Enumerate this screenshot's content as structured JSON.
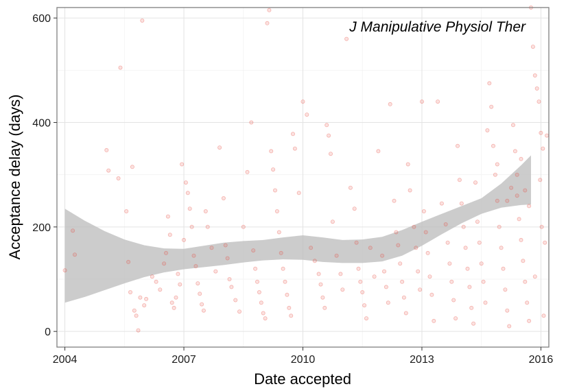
{
  "chart_data": {
    "type": "scatter",
    "title": "",
    "annotation": "J Manipulative Physiol Ther",
    "xlabel": "Date accepted",
    "ylabel": "Acceptance delay (days)",
    "x_unit": "year",
    "xlim": [
      2003.8,
      2016.2
    ],
    "ylim": [
      -30,
      620
    ],
    "x_ticks": [
      2004,
      2007,
      2010,
      2013,
      2016
    ],
    "x_tick_labels": [
      "2004",
      "2007",
      "2010",
      "2013",
      "2016"
    ],
    "y_ticks": [
      0,
      200,
      400,
      600
    ],
    "y_tick_labels": [
      "0",
      "200",
      "400",
      "600"
    ],
    "grid": true,
    "point_color": "#e84a3f",
    "band_color": "#bebebe",
    "series": [
      {
        "kind": "points",
        "points": [
          [
            2004.0,
            117
          ],
          [
            2004.2,
            193
          ],
          [
            2004.25,
            147
          ],
          [
            2005.05,
            347
          ],
          [
            2005.1,
            308
          ],
          [
            2005.35,
            293
          ],
          [
            2005.4,
            505
          ],
          [
            2005.55,
            230
          ],
          [
            2005.6,
            133
          ],
          [
            2005.65,
            75
          ],
          [
            2005.7,
            315
          ],
          [
            2005.75,
            40
          ],
          [
            2005.8,
            30
          ],
          [
            2005.85,
            2
          ],
          [
            2005.9,
            65
          ],
          [
            2005.95,
            595
          ],
          [
            2006.0,
            50
          ],
          [
            2006.05,
            62
          ],
          [
            2006.2,
            105
          ],
          [
            2006.3,
            95
          ],
          [
            2006.4,
            80
          ],
          [
            2006.5,
            130
          ],
          [
            2006.55,
            150
          ],
          [
            2006.6,
            220
          ],
          [
            2006.65,
            185
          ],
          [
            2006.7,
            55
          ],
          [
            2006.75,
            45
          ],
          [
            2006.8,
            65
          ],
          [
            2006.85,
            110
          ],
          [
            2006.9,
            90
          ],
          [
            2007.0,
            175
          ],
          [
            2006.95,
            320
          ],
          [
            2007.05,
            285
          ],
          [
            2007.1,
            265
          ],
          [
            2007.15,
            235
          ],
          [
            2007.2,
            200
          ],
          [
            2007.25,
            145
          ],
          [
            2007.3,
            125
          ],
          [
            2007.35,
            92
          ],
          [
            2007.4,
            72
          ],
          [
            2007.45,
            52
          ],
          [
            2007.5,
            40
          ],
          [
            2007.55,
            230
          ],
          [
            2007.6,
            200
          ],
          [
            2007.7,
            160
          ],
          [
            2007.8,
            115
          ],
          [
            2007.9,
            352
          ],
          [
            2008.0,
            255
          ],
          [
            2008.05,
            165
          ],
          [
            2008.1,
            140
          ],
          [
            2008.15,
            100
          ],
          [
            2008.2,
            85
          ],
          [
            2008.3,
            60
          ],
          [
            2008.4,
            38
          ],
          [
            2008.5,
            200
          ],
          [
            2008.6,
            305
          ],
          [
            2008.7,
            400
          ],
          [
            2008.75,
            155
          ],
          [
            2008.8,
            120
          ],
          [
            2008.85,
            95
          ],
          [
            2008.9,
            75
          ],
          [
            2008.95,
            55
          ],
          [
            2009.0,
            35
          ],
          [
            2009.05,
            25
          ],
          [
            2009.1,
            590
          ],
          [
            2009.15,
            615
          ],
          [
            2009.2,
            345
          ],
          [
            2009.25,
            310
          ],
          [
            2009.3,
            270
          ],
          [
            2009.35,
            230
          ],
          [
            2009.4,
            190
          ],
          [
            2009.45,
            150
          ],
          [
            2009.5,
            120
          ],
          [
            2009.55,
            95
          ],
          [
            2009.6,
            70
          ],
          [
            2009.65,
            45
          ],
          [
            2009.7,
            30
          ],
          [
            2009.75,
            378
          ],
          [
            2009.8,
            350
          ],
          [
            2009.9,
            265
          ],
          [
            2010.0,
            440
          ],
          [
            2010.1,
            415
          ],
          [
            2010.2,
            160
          ],
          [
            2010.3,
            135
          ],
          [
            2010.4,
            110
          ],
          [
            2010.45,
            90
          ],
          [
            2010.5,
            65
          ],
          [
            2010.55,
            45
          ],
          [
            2010.6,
            395
          ],
          [
            2010.65,
            375
          ],
          [
            2010.7,
            340
          ],
          [
            2010.75,
            210
          ],
          [
            2010.85,
            145
          ],
          [
            2010.95,
            110
          ],
          [
            2011.0,
            80
          ],
          [
            2011.1,
            560
          ],
          [
            2011.2,
            275
          ],
          [
            2011.3,
            235
          ],
          [
            2011.35,
            170
          ],
          [
            2011.4,
            120
          ],
          [
            2011.45,
            95
          ],
          [
            2011.5,
            75
          ],
          [
            2011.55,
            50
          ],
          [
            2011.6,
            25
          ],
          [
            2011.7,
            160
          ],
          [
            2011.8,
            105
          ],
          [
            2011.9,
            345
          ],
          [
            2012.0,
            145
          ],
          [
            2012.05,
            115
          ],
          [
            2012.1,
            85
          ],
          [
            2012.15,
            55
          ],
          [
            2012.2,
            435
          ],
          [
            2012.3,
            250
          ],
          [
            2012.35,
            190
          ],
          [
            2012.4,
            165
          ],
          [
            2012.45,
            130
          ],
          [
            2012.5,
            95
          ],
          [
            2012.55,
            65
          ],
          [
            2012.6,
            35
          ],
          [
            2012.65,
            320
          ],
          [
            2012.7,
            270
          ],
          [
            2012.8,
            200
          ],
          [
            2012.85,
            160
          ],
          [
            2012.9,
            115
          ],
          [
            2012.95,
            80
          ],
          [
            2013.0,
            440
          ],
          [
            2013.05,
            230
          ],
          [
            2013.1,
            190
          ],
          [
            2013.15,
            150
          ],
          [
            2013.2,
            105
          ],
          [
            2013.25,
            70
          ],
          [
            2013.3,
            20
          ],
          [
            2013.4,
            440
          ],
          [
            2013.5,
            245
          ],
          [
            2013.6,
            205
          ],
          [
            2013.65,
            170
          ],
          [
            2013.7,
            130
          ],
          [
            2013.75,
            95
          ],
          [
            2013.8,
            60
          ],
          [
            2013.85,
            25
          ],
          [
            2013.9,
            355
          ],
          [
            2013.95,
            290
          ],
          [
            2014.0,
            245
          ],
          [
            2014.05,
            200
          ],
          [
            2014.1,
            160
          ],
          [
            2014.15,
            120
          ],
          [
            2014.2,
            85
          ],
          [
            2014.25,
            45
          ],
          [
            2014.3,
            15
          ],
          [
            2014.35,
            285
          ],
          [
            2014.4,
            210
          ],
          [
            2014.45,
            170
          ],
          [
            2014.5,
            130
          ],
          [
            2014.55,
            95
          ],
          [
            2014.6,
            55
          ],
          [
            2014.65,
            385
          ],
          [
            2014.7,
            475
          ],
          [
            2014.75,
            430
          ],
          [
            2014.8,
            355
          ],
          [
            2014.85,
            300
          ],
          [
            2014.9,
            250
          ],
          [
            2014.95,
            200
          ],
          [
            2015.0,
            160
          ],
          [
            2015.05,
            120
          ],
          [
            2015.1,
            80
          ],
          [
            2015.15,
            40
          ],
          [
            2015.2,
            10
          ],
          [
            2015.3,
            395
          ],
          [
            2015.35,
            345
          ],
          [
            2015.4,
            260
          ],
          [
            2015.45,
            215
          ],
          [
            2015.5,
            175
          ],
          [
            2015.55,
            135
          ],
          [
            2015.6,
            95
          ],
          [
            2015.65,
            55
          ],
          [
            2015.7,
            20
          ],
          [
            2015.75,
            620
          ],
          [
            2015.8,
            545
          ],
          [
            2015.85,
            490
          ],
          [
            2015.9,
            465
          ],
          [
            2015.95,
            440
          ],
          [
            2016.0,
            380
          ],
          [
            2016.05,
            350
          ],
          [
            2015.4,
            300
          ],
          [
            2015.5,
            330
          ],
          [
            2015.6,
            270
          ],
          [
            2015.7,
            240
          ],
          [
            2015.25,
            275
          ],
          [
            2015.15,
            250
          ],
          [
            2014.9,
            320
          ],
          [
            2015.85,
            105
          ],
          [
            2016.1,
            170
          ],
          [
            2016.15,
            375
          ],
          [
            2015.98,
            290
          ],
          [
            2016.02,
            200
          ],
          [
            2016.07,
            30
          ]
        ]
      },
      {
        "kind": "smooth-ci-band",
        "x": [
          2004.0,
          2004.5,
          2005.0,
          2005.5,
          2006.0,
          2006.5,
          2007.0,
          2007.5,
          2008.0,
          2008.5,
          2009.0,
          2009.5,
          2010.0,
          2010.5,
          2011.0,
          2011.5,
          2012.0,
          2012.5,
          2013.0,
          2013.5,
          2014.0,
          2014.5,
          2015.0,
          2015.5,
          2015.75
        ],
        "lower": [
          55,
          66,
          79,
          92,
          104,
          113,
          119,
          123,
          127,
          132,
          136,
          138,
          137,
          133,
          131,
          131,
          134,
          145,
          164,
          186,
          207,
          225,
          237,
          242,
          243
        ],
        "upper": [
          235,
          212,
          192,
          176,
          165,
          159,
          158,
          164,
          170,
          173,
          175,
          180,
          184,
          180,
          175,
          176,
          181,
          194,
          210,
          225,
          240,
          255,
          283,
          318,
          337
        ]
      }
    ]
  }
}
